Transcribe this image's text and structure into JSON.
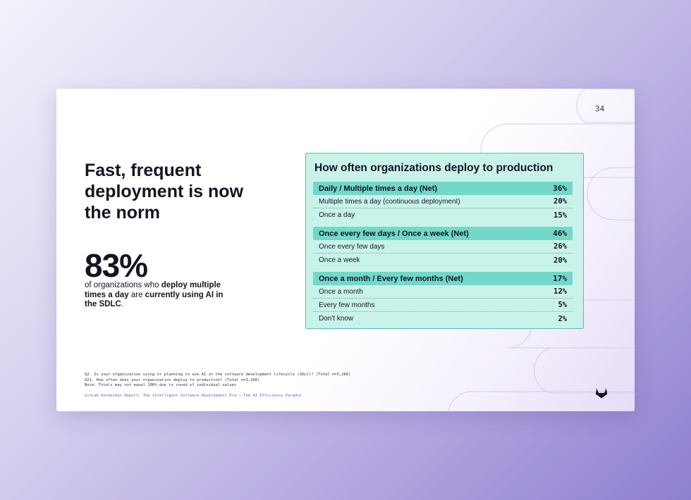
{
  "slide": {
    "page_number": "34",
    "headline": "Fast, frequent deployment is now the norm",
    "stat": {
      "value": "83%",
      "desc_part1": "of organizations who ",
      "desc_bold1": "deploy multiple times a day",
      "desc_part2": " are ",
      "desc_bold2": "currently using AI in the SDLC",
      "desc_part3": "."
    },
    "card": {
      "title": "How often organizations deploy to production",
      "rows": [
        {
          "label": "Daily / Multiple times a day (Net)",
          "value": "36%",
          "net": true
        },
        {
          "label": "Multiple times a day (continuous deployment)",
          "value": "20%",
          "net": false
        },
        {
          "label": "Once a day",
          "value": "15%",
          "net": false
        },
        {
          "label": "Once every few days / Once a week (Net)",
          "value": "46%",
          "net": true
        },
        {
          "label": "Once every few days",
          "value": "26%",
          "net": false
        },
        {
          "label": "Once a week",
          "value": "20%",
          "net": false
        },
        {
          "label": "Once a month / Every few months (Net)",
          "value": "17%",
          "net": true
        },
        {
          "label": "Once a month",
          "value": "12%",
          "net": false
        },
        {
          "label": "Every few months",
          "value": "5%",
          "net": false
        },
        {
          "label": "Don't know",
          "value": "2%",
          "net": false
        }
      ]
    },
    "footnotes": [
      "Q2.  Is your organization using or planning to use AI in the software development lifecycle (SDLC)? (Total n=3,266)",
      "Q21. How often does your organization deploy to production? (Total n=3,266)",
      "Note: Totals may not equal 100% due to round of individual values"
    ],
    "source": "GitLab DevSecOps Report: The Intelligent Software Development Era | The AI Efficiency Paradox",
    "logo_icon": "gitlab-tanuki-icon"
  },
  "colors": {
    "card_bg": "#c9f3ea",
    "net_row_bg": "#72d8c7",
    "card_border": "#4fc2b2",
    "text": "#171321",
    "source_text": "#6b5fb0"
  }
}
